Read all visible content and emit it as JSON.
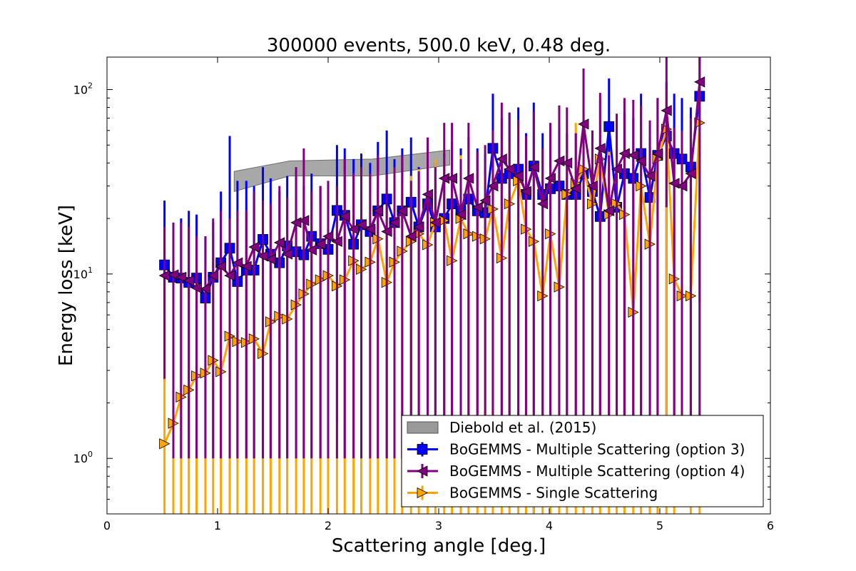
{
  "chart_data": {
    "type": "scatter",
    "title": "300000 events, 500.0 keV, 0.48 deg.",
    "xlabel": "Scattering angle [deg.]",
    "ylabel": "Energy loss [keV]",
    "xlim": [
      0,
      6
    ],
    "ylim": [
      0.5,
      150
    ],
    "yscale": "log",
    "xticks": [
      "0",
      "1",
      "2",
      "3",
      "4",
      "5",
      "6"
    ],
    "yticks": [
      {
        "value": 1,
        "base": "10",
        "exp": "0"
      },
      {
        "value": 10,
        "base": "10",
        "exp": "1"
      },
      {
        "value": 100,
        "base": "10",
        "exp": "2"
      }
    ],
    "grid": false,
    "legend_position": "lower-right",
    "band": {
      "name": "Diebold et al. (2015)",
      "color": "#999999",
      "x": [
        1.15,
        1.65,
        2.4,
        3.1
      ],
      "lower": [
        28,
        34,
        34,
        39
      ],
      "upper": [
        36,
        41,
        42,
        47
      ]
    },
    "series": [
      {
        "name": "BoGEMMS - Multiple Scattering (option 3)",
        "color": "#0000ff",
        "marker": "square",
        "x": [
          0.52,
          0.6,
          0.67,
          0.74,
          0.81,
          0.89,
          0.96,
          1.03,
          1.11,
          1.18,
          1.26,
          1.33,
          1.41,
          1.48,
          1.56,
          1.63,
          1.71,
          1.78,
          1.85,
          1.93,
          2.0,
          2.08,
          2.15,
          2.23,
          2.3,
          2.38,
          2.45,
          2.53,
          2.6,
          2.67,
          2.75,
          2.82,
          2.9,
          2.97,
          3.05,
          3.12,
          3.2,
          3.27,
          3.35,
          3.42,
          3.49,
          3.57,
          3.64,
          3.72,
          3.79,
          3.86,
          3.94,
          4.01,
          4.09,
          4.16,
          4.24,
          4.31,
          4.39,
          4.46,
          4.54,
          4.61,
          4.68,
          4.76,
          4.83,
          4.91,
          4.98,
          5.06,
          5.13,
          5.2,
          5.28,
          5.36
        ],
        "y": [
          11.2,
          9.6,
          9.5,
          9.0,
          9.5,
          7.4,
          9.6,
          11.5,
          13.8,
          9.1,
          10.5,
          10.5,
          15.4,
          12.8,
          11.5,
          14.2,
          13.2,
          12.7,
          16.0,
          14.6,
          13.6,
          22.1,
          20.8,
          14.5,
          18.5,
          17.0,
          22.0,
          25.5,
          19.0,
          22.0,
          24.5,
          18.0,
          24.0,
          18.0,
          20.0,
          24.0,
          22.0,
          25.5,
          22.0,
          21.5,
          48.0,
          33.0,
          35.0,
          37.0,
          27.0,
          38.5,
          27.0,
          29.0,
          30.0,
          27.0,
          27.0,
          35.0,
          28.0,
          20.5,
          63.0,
          23.0,
          35.0,
          33.0,
          45.0,
          26.0,
          44.0,
          56.0,
          45.0,
          42.0,
          38.0,
          92.0
        ],
        "err_lo": [
          2.6,
          1,
          1,
          1,
          1,
          1,
          1,
          1,
          1,
          1,
          1,
          1,
          1,
          1,
          1,
          1,
          1,
          1,
          1,
          1,
          1,
          1.6,
          1,
          1,
          1,
          1,
          1,
          1,
          1,
          1,
          1,
          1,
          1,
          1,
          1,
          1,
          1,
          1,
          1,
          1,
          1,
          1,
          1,
          1,
          1,
          0.5,
          1,
          1,
          4,
          1,
          1,
          1,
          1,
          1,
          1,
          1,
          1,
          1,
          1,
          0.5,
          1,
          1,
          1,
          1,
          1,
          7.0
        ],
        "err_hi": [
          25,
          19,
          20,
          22,
          21,
          16,
          19,
          28,
          56,
          32,
          32,
          30,
          38,
          33,
          28,
          34,
          34,
          30,
          35,
          30,
          30,
          50,
          48,
          42,
          45,
          40,
          52,
          60,
          42,
          48,
          55,
          38,
          52,
          40,
          45,
          52,
          48,
          55,
          48,
          45,
          95,
          70,
          75,
          80,
          58,
          85,
          58,
          62,
          62,
          58,
          58,
          75,
          60,
          42,
          115,
          48,
          75,
          70,
          95,
          55,
          90,
          110,
          95,
          90,
          80,
          150
        ]
      },
      {
        "name": "BoGEMMS - Multiple Scattering (option 4)",
        "color": "#800080",
        "marker": "triangle-left",
        "x": [
          0.52,
          0.6,
          0.67,
          0.74,
          0.81,
          0.89,
          0.96,
          1.03,
          1.11,
          1.18,
          1.26,
          1.33,
          1.41,
          1.48,
          1.56,
          1.63,
          1.71,
          1.78,
          1.85,
          1.93,
          2.0,
          2.08,
          2.15,
          2.23,
          2.3,
          2.38,
          2.45,
          2.53,
          2.6,
          2.67,
          2.75,
          2.82,
          2.9,
          2.97,
          3.05,
          3.12,
          3.2,
          3.27,
          3.35,
          3.42,
          3.49,
          3.57,
          3.64,
          3.72,
          3.79,
          3.86,
          3.94,
          4.01,
          4.09,
          4.16,
          4.24,
          4.31,
          4.39,
          4.46,
          4.54,
          4.61,
          4.68,
          4.76,
          4.83,
          4.91,
          4.98,
          5.06,
          5.13,
          5.2,
          5.28,
          5.36
        ],
        "y": [
          9.8,
          9.9,
          9.6,
          9.2,
          8.4,
          8.3,
          9.8,
          11.0,
          9.8,
          11.5,
          11.0,
          14.0,
          12.5,
          12.0,
          14.8,
          12.8,
          19.0,
          19.5,
          13.5,
          14.5,
          16.0,
          15.0,
          20.5,
          17.5,
          18.5,
          17.5,
          22.0,
          17.0,
          19.0,
          22.0,
          16.0,
          18.0,
          27.0,
          19.0,
          33.0,
          33.0,
          21.0,
          33.0,
          23.0,
          25.0,
          30.0,
          42.0,
          37.0,
          34.0,
          28.0,
          38.0,
          24.0,
          33.0,
          41.0,
          40.0,
          29.0,
          65.0,
          30.0,
          48.0,
          22.0,
          37.0,
          45.0,
          44.0,
          41.0,
          34.0,
          45.0,
          77.0,
          31.0,
          30.0,
          35.0,
          110.0
        ],
        "err_lo": [
          2.7,
          1,
          1,
          1,
          1,
          1,
          1,
          1,
          1,
          1,
          1,
          1,
          1,
          1,
          1,
          1,
          1,
          1,
          1,
          1,
          1,
          1,
          1,
          1,
          1,
          1,
          1,
          1,
          1,
          1,
          1,
          1,
          1,
          1,
          1,
          1,
          1,
          1,
          1,
          1,
          1,
          1,
          1,
          1,
          1,
          1,
          1,
          1,
          1,
          1,
          1,
          1,
          1,
          1,
          1,
          1,
          1,
          1,
          1,
          1,
          1,
          23,
          1,
          1,
          1,
          1
        ],
        "err_hi": [
          18,
          19,
          19,
          18,
          16,
          16,
          20,
          22,
          20,
          22,
          22,
          28,
          25,
          24,
          30,
          26,
          38,
          48,
          28,
          30,
          32,
          30,
          42,
          35,
          38,
          35,
          44,
          35,
          38,
          44,
          32,
          36,
          55,
          38,
          66,
          66,
          42,
          66,
          46,
          50,
          60,
          85,
          75,
          68,
          56,
          76,
          48,
          66,
          82,
          80,
          58,
          130,
          60,
          96,
          44,
          74,
          90,
          88,
          82,
          68,
          90,
          150,
          62,
          60,
          70,
          150
        ]
      },
      {
        "name": "BoGEMMS - Single Scattering",
        "color": "#ffa500",
        "marker": "triangle-right",
        "x": [
          0.52,
          0.6,
          0.67,
          0.74,
          0.81,
          0.89,
          0.96,
          1.03,
          1.11,
          1.18,
          1.26,
          1.33,
          1.41,
          1.48,
          1.56,
          1.63,
          1.71,
          1.78,
          1.85,
          1.93,
          2.0,
          2.08,
          2.15,
          2.23,
          2.3,
          2.38,
          2.45,
          2.53,
          2.6,
          2.67,
          2.75,
          2.82,
          2.9,
          2.97,
          3.05,
          3.12,
          3.2,
          3.27,
          3.35,
          3.42,
          3.49,
          3.57,
          3.64,
          3.72,
          3.79,
          3.86,
          3.94,
          4.01,
          4.09,
          4.16,
          4.24,
          4.31,
          4.39,
          4.46,
          4.54,
          4.61,
          4.68,
          4.76,
          4.83,
          4.91,
          4.98,
          5.06,
          5.13,
          5.2,
          5.28,
          5.36
        ],
        "y": [
          1.2,
          1.55,
          2.15,
          2.35,
          2.8,
          2.9,
          3.4,
          2.95,
          4.6,
          4.3,
          4.25,
          4.45,
          3.7,
          5.5,
          5.9,
          5.7,
          6.8,
          7.8,
          8.8,
          9.3,
          9.8,
          8.6,
          9.3,
          11.8,
          10.6,
          11.6,
          15.5,
          9.0,
          11.6,
          13.3,
          15.0,
          16.5,
          14.4,
          19.0,
          19.5,
          11.8,
          20.0,
          16.5,
          16.0,
          15.5,
          22.5,
          12.2,
          24.0,
          32.0,
          17.5,
          15.0,
          7.6,
          16.5,
          8.5,
          27.0,
          31.0,
          37.0,
          24.0,
          42.0,
          21.0,
          24.0,
          21.0,
          6.2,
          30.0,
          14.5,
          42.0,
          61.0,
          9.4,
          7.6,
          7.6,
          66.0
        ],
        "err_lo": [
          0.5,
          0.5,
          0.5,
          0.5,
          0.5,
          0.5,
          0.5,
          0.5,
          0.5,
          0.5,
          0.5,
          0.5,
          0.5,
          0.5,
          0.5,
          0.5,
          0.5,
          0.5,
          0.5,
          0.5,
          0.5,
          0.5,
          0.5,
          0.5,
          0.5,
          0.5,
          0.5,
          0.5,
          0.5,
          0.5,
          0.5,
          0.5,
          0.5,
          0.5,
          0.5,
          0.5,
          0.5,
          0.5,
          0.5,
          0.5,
          0.5,
          0.5,
          0.5,
          0.5,
          0.5,
          0.5,
          0.5,
          0.5,
          0.5,
          0.5,
          0.5,
          0.5,
          0.5,
          0.5,
          0.5,
          0.5,
          0.5,
          0.5,
          0.5,
          0.5,
          0.5,
          0.5,
          0.5,
          2.0,
          0.5,
          0.5
        ],
        "err_hi": [
          6.0,
          7.0,
          8.5,
          9.0,
          10.5,
          11.0,
          12.0,
          12.0,
          14.0,
          13.5,
          13.5,
          14.5,
          13.0,
          16.0,
          17.0,
          17.0,
          19.0,
          21.0,
          23.0,
          24.0,
          25.0,
          23.0,
          24.0,
          29.0,
          27.0,
          28.0,
          35.0,
          23.0,
          28.0,
          31.0,
          34.0,
          37.0,
          33.0,
          42.0,
          43.0,
          28.0,
          44.0,
          37.0,
          36.0,
          35.0,
          50.0,
          29.0,
          52.0,
          68.0,
          38.0,
          34.0,
          20.0,
          37.0,
          22.0,
          58.0,
          66.0,
          78.0,
          52.0,
          88.0,
          46.0,
          52.0,
          46.0,
          18.0,
          64.0,
          33.0,
          88.0,
          100.0,
          22.0,
          20.0,
          20.0,
          135.0
        ]
      }
    ]
  }
}
